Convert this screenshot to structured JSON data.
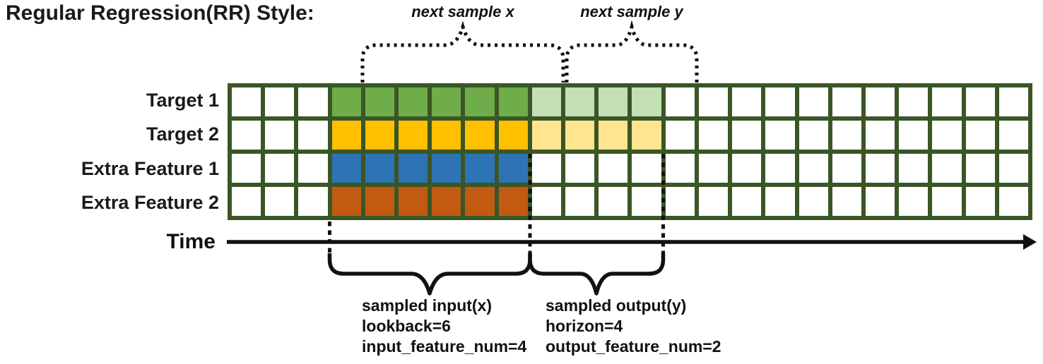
{
  "title": "Regular Regression(RR) Style:",
  "grid": {
    "columns": 24,
    "input_start_col": 3,
    "input_col_count": 6,
    "output_start_col": 9,
    "output_col_count": 4,
    "border_color": "#3b5626",
    "empty_color": "#ffffff",
    "rows": [
      {
        "label": "Target 1",
        "input_color": "#6fac4a",
        "output_color": "#c5dfb4",
        "has_output": true
      },
      {
        "label": "Target 2",
        "input_color": "#ffc000",
        "output_color": "#ffe58f",
        "has_output": true
      },
      {
        "label": "Extra Feature 1",
        "input_color": "#2e74b5",
        "output_color": "#ffffff",
        "has_output": false
      },
      {
        "label": "Extra Feature 2",
        "input_color": "#c35a11",
        "output_color": "#ffffff",
        "has_output": false
      }
    ]
  },
  "time_axis": {
    "label": "Time"
  },
  "annotations": {
    "next_sample_x": "next sample x",
    "next_sample_y": "next sample y",
    "input_block": {
      "line1": "sampled input(x)",
      "line2": "lookback=6",
      "line3": "input_feature_num=4"
    },
    "output_block": {
      "line1": "sampled output(y)",
      "line2": "horizon=4",
      "line3": "output_feature_num=2"
    }
  }
}
